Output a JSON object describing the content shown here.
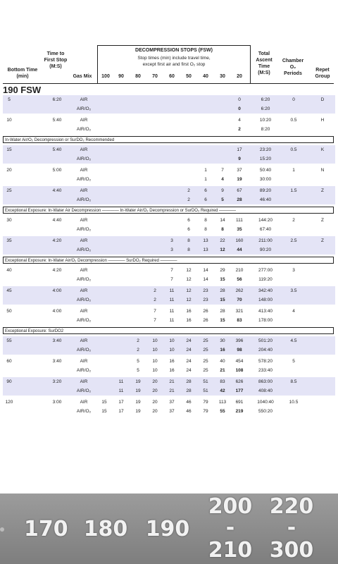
{
  "header": {
    "bottom_time": "Bottom Time (min)",
    "time_first_stop": "Time to First Stop (M:S)",
    "gas_mix": "Gas Mix",
    "deco_title": "DECOMPRESSION STOPS (FSW)",
    "deco_sub1": "Stop times (min) include travel time,",
    "deco_sub2": "except first air and first O₂ stop",
    "depths": [
      "100",
      "90",
      "80",
      "70",
      "60",
      "50",
      "40",
      "30",
      "20"
    ],
    "total_ascent": "Total Ascent Time (M:S)",
    "chamber": "Chamber O₂ Periods",
    "repet": "Repet Group"
  },
  "section_title": "190 FSW",
  "notices": [
    "In-Water Air/O₂ Decompression or SurDO₂ Recommended",
    "Exceptional Exposure: In-Water Air Decompression ———— In-Water Air/O₂ Decompression or SurDO₂ Required ————",
    "Exceptional Exposure: In-Water Air/O₂ Decompression ———— SurDO₂ Required ————",
    "Exceptional Exposure: SurDO2"
  ],
  "rows": [
    {
      "bt": "5",
      "tf": "6:20",
      "gas": "AIR",
      "stops": [
        "",
        "",
        "",
        "",
        "",
        "",
        "",
        "",
        "0"
      ],
      "asc": "6:20",
      "ch": "0",
      "rg": "D"
    },
    {
      "bt": "",
      "tf": "",
      "gas": "AIR/O₂",
      "stops": [
        "",
        "",
        "",
        "",
        "",
        "",
        "",
        "",
        "0"
      ],
      "asc": "6:20",
      "ch": "",
      "rg": ""
    },
    {
      "bt": "10",
      "tf": "5:40",
      "gas": "AIR",
      "stops": [
        "",
        "",
        "",
        "",
        "",
        "",
        "",
        "",
        "4"
      ],
      "asc": "10:20",
      "ch": "0.5",
      "rg": "H"
    },
    {
      "bt": "",
      "tf": "",
      "gas": "AIR/O₂",
      "stops": [
        "",
        "",
        "",
        "",
        "",
        "",
        "",
        "",
        "2"
      ],
      "asc": "8:20",
      "ch": "",
      "rg": ""
    },
    {
      "bt": "15",
      "tf": "5:40",
      "gas": "AIR",
      "stops": [
        "",
        "",
        "",
        "",
        "",
        "",
        "",
        "",
        "17"
      ],
      "asc": "23:20",
      "ch": "0.5",
      "rg": "K"
    },
    {
      "bt": "",
      "tf": "",
      "gas": "AIR/O₂",
      "stops": [
        "",
        "",
        "",
        "",
        "",
        "",
        "",
        "",
        "9"
      ],
      "asc": "15:20",
      "ch": "",
      "rg": ""
    },
    {
      "bt": "20",
      "tf": "5:00",
      "gas": "AIR",
      "stops": [
        "",
        "",
        "",
        "",
        "",
        "",
        "1",
        "7",
        "37"
      ],
      "asc": "50:40",
      "ch": "1",
      "rg": "N"
    },
    {
      "bt": "",
      "tf": "",
      "gas": "AIR/O₂",
      "stops": [
        "",
        "",
        "",
        "",
        "",
        "",
        "1",
        "4",
        "19"
      ],
      "asc": "30:00",
      "ch": "",
      "rg": ""
    },
    {
      "bt": "25",
      "tf": "4:40",
      "gas": "AIR",
      "stops": [
        "",
        "",
        "",
        "",
        "",
        "2",
        "6",
        "9",
        "67"
      ],
      "asc": "89:20",
      "ch": "1.5",
      "rg": "Z"
    },
    {
      "bt": "",
      "tf": "",
      "gas": "AIR/O₂",
      "stops": [
        "",
        "",
        "",
        "",
        "",
        "2",
        "6",
        "5",
        "28"
      ],
      "asc": "46:40",
      "ch": "",
      "rg": ""
    },
    {
      "bt": "30",
      "tf": "4:40",
      "gas": "AIR",
      "stops": [
        "",
        "",
        "",
        "",
        "",
        "6",
        "8",
        "14",
        "111"
      ],
      "asc": "144:20",
      "ch": "2",
      "rg": "Z"
    },
    {
      "bt": "",
      "tf": "",
      "gas": "AIR/O₂",
      "stops": [
        "",
        "",
        "",
        "",
        "",
        "6",
        "8",
        "8",
        "35"
      ],
      "asc": "67:40",
      "ch": "",
      "rg": ""
    },
    {
      "bt": "35",
      "tf": "4:20",
      "gas": "AIR",
      "stops": [
        "",
        "",
        "",
        "",
        "3",
        "8",
        "13",
        "22",
        "160"
      ],
      "asc": "211:00",
      "ch": "2.5",
      "rg": "Z"
    },
    {
      "bt": "",
      "tf": "",
      "gas": "AIR/O₂",
      "stops": [
        "",
        "",
        "",
        "",
        "3",
        "8",
        "13",
        "12",
        "44"
      ],
      "asc": "90:20",
      "ch": "",
      "rg": ""
    },
    {
      "bt": "40",
      "tf": "4:20",
      "gas": "AIR",
      "stops": [
        "",
        "",
        "",
        "",
        "7",
        "12",
        "14",
        "29",
        "210"
      ],
      "asc": "277:00",
      "ch": "3",
      "rg": ""
    },
    {
      "bt": "",
      "tf": "",
      "gas": "AIR/O₂",
      "stops": [
        "",
        "",
        "",
        "",
        "7",
        "12",
        "14",
        "15",
        "56"
      ],
      "asc": "119:20",
      "ch": "",
      "rg": ""
    },
    {
      "bt": "45",
      "tf": "4:00",
      "gas": "AIR",
      "stops": [
        "",
        "",
        "",
        "2",
        "11",
        "12",
        "23",
        "28",
        "262"
      ],
      "asc": "342:40",
      "ch": "3.5",
      "rg": ""
    },
    {
      "bt": "",
      "tf": "",
      "gas": "AIR/O₂",
      "stops": [
        "",
        "",
        "",
        "2",
        "11",
        "12",
        "23",
        "15",
        "70"
      ],
      "asc": "148:00",
      "ch": "",
      "rg": ""
    },
    {
      "bt": "50",
      "tf": "4:00",
      "gas": "AIR",
      "stops": [
        "",
        "",
        "",
        "7",
        "11",
        "16",
        "26",
        "28",
        "321"
      ],
      "asc": "413:40",
      "ch": "4",
      "rg": ""
    },
    {
      "bt": "",
      "tf": "",
      "gas": "AIR/O₂",
      "stops": [
        "",
        "",
        "",
        "7",
        "11",
        "16",
        "26",
        "15",
        "83"
      ],
      "asc": "178:00",
      "ch": "",
      "rg": ""
    },
    {
      "bt": "55",
      "tf": "3:40",
      "gas": "AIR",
      "stops": [
        "",
        "",
        "2",
        "10",
        "10",
        "24",
        "25",
        "30",
        "396"
      ],
      "asc": "501:20",
      "ch": "4.5",
      "rg": ""
    },
    {
      "bt": "",
      "tf": "",
      "gas": "AIR/O₂",
      "stops": [
        "",
        "",
        "2",
        "10",
        "10",
        "24",
        "25",
        "16",
        "98"
      ],
      "asc": "204:40",
      "ch": "",
      "rg": ""
    },
    {
      "bt": "60",
      "tf": "3:40",
      "gas": "AIR",
      "stops": [
        "",
        "",
        "5",
        "10",
        "16",
        "24",
        "25",
        "40",
        "454"
      ],
      "asc": "578:20",
      "ch": "5",
      "rg": ""
    },
    {
      "bt": "",
      "tf": "",
      "gas": "AIR/O₂",
      "stops": [
        "",
        "",
        "5",
        "10",
        "16",
        "24",
        "25",
        "21",
        "108"
      ],
      "asc": "233:40",
      "ch": "",
      "rg": ""
    },
    {
      "bt": "90",
      "tf": "3:20",
      "gas": "AIR",
      "stops": [
        "",
        "11",
        "19",
        "20",
        "21",
        "28",
        "51",
        "83",
        "626"
      ],
      "asc": "863:00",
      "ch": "8.5",
      "rg": ""
    },
    {
      "bt": "",
      "tf": "",
      "gas": "AIR/O₂",
      "stops": [
        "",
        "11",
        "19",
        "20",
        "21",
        "28",
        "51",
        "42",
        "177"
      ],
      "asc": "408:40",
      "ch": "",
      "rg": ""
    },
    {
      "bt": "120",
      "tf": "3:00",
      "gas": "AIR",
      "stops": [
        "15",
        "17",
        "19",
        "20",
        "37",
        "46",
        "79",
        "113",
        "691"
      ],
      "asc": "1040:40",
      "ch": "10.5",
      "rg": ""
    },
    {
      "bt": "",
      "tf": "",
      "gas": "AIR/O₂",
      "stops": [
        "15",
        "17",
        "19",
        "20",
        "37",
        "46",
        "79",
        "55",
        "219"
      ],
      "asc": "550:20",
      "ch": "",
      "rg": ""
    }
  ],
  "bottom_bar": {
    "items": [
      "170",
      "180",
      "190"
    ],
    "range1_top": "200",
    "range1_dash": "-",
    "range1_bottom": "210",
    "range2_top": "220",
    "range2_dash": "-",
    "range2_bottom": "300"
  }
}
